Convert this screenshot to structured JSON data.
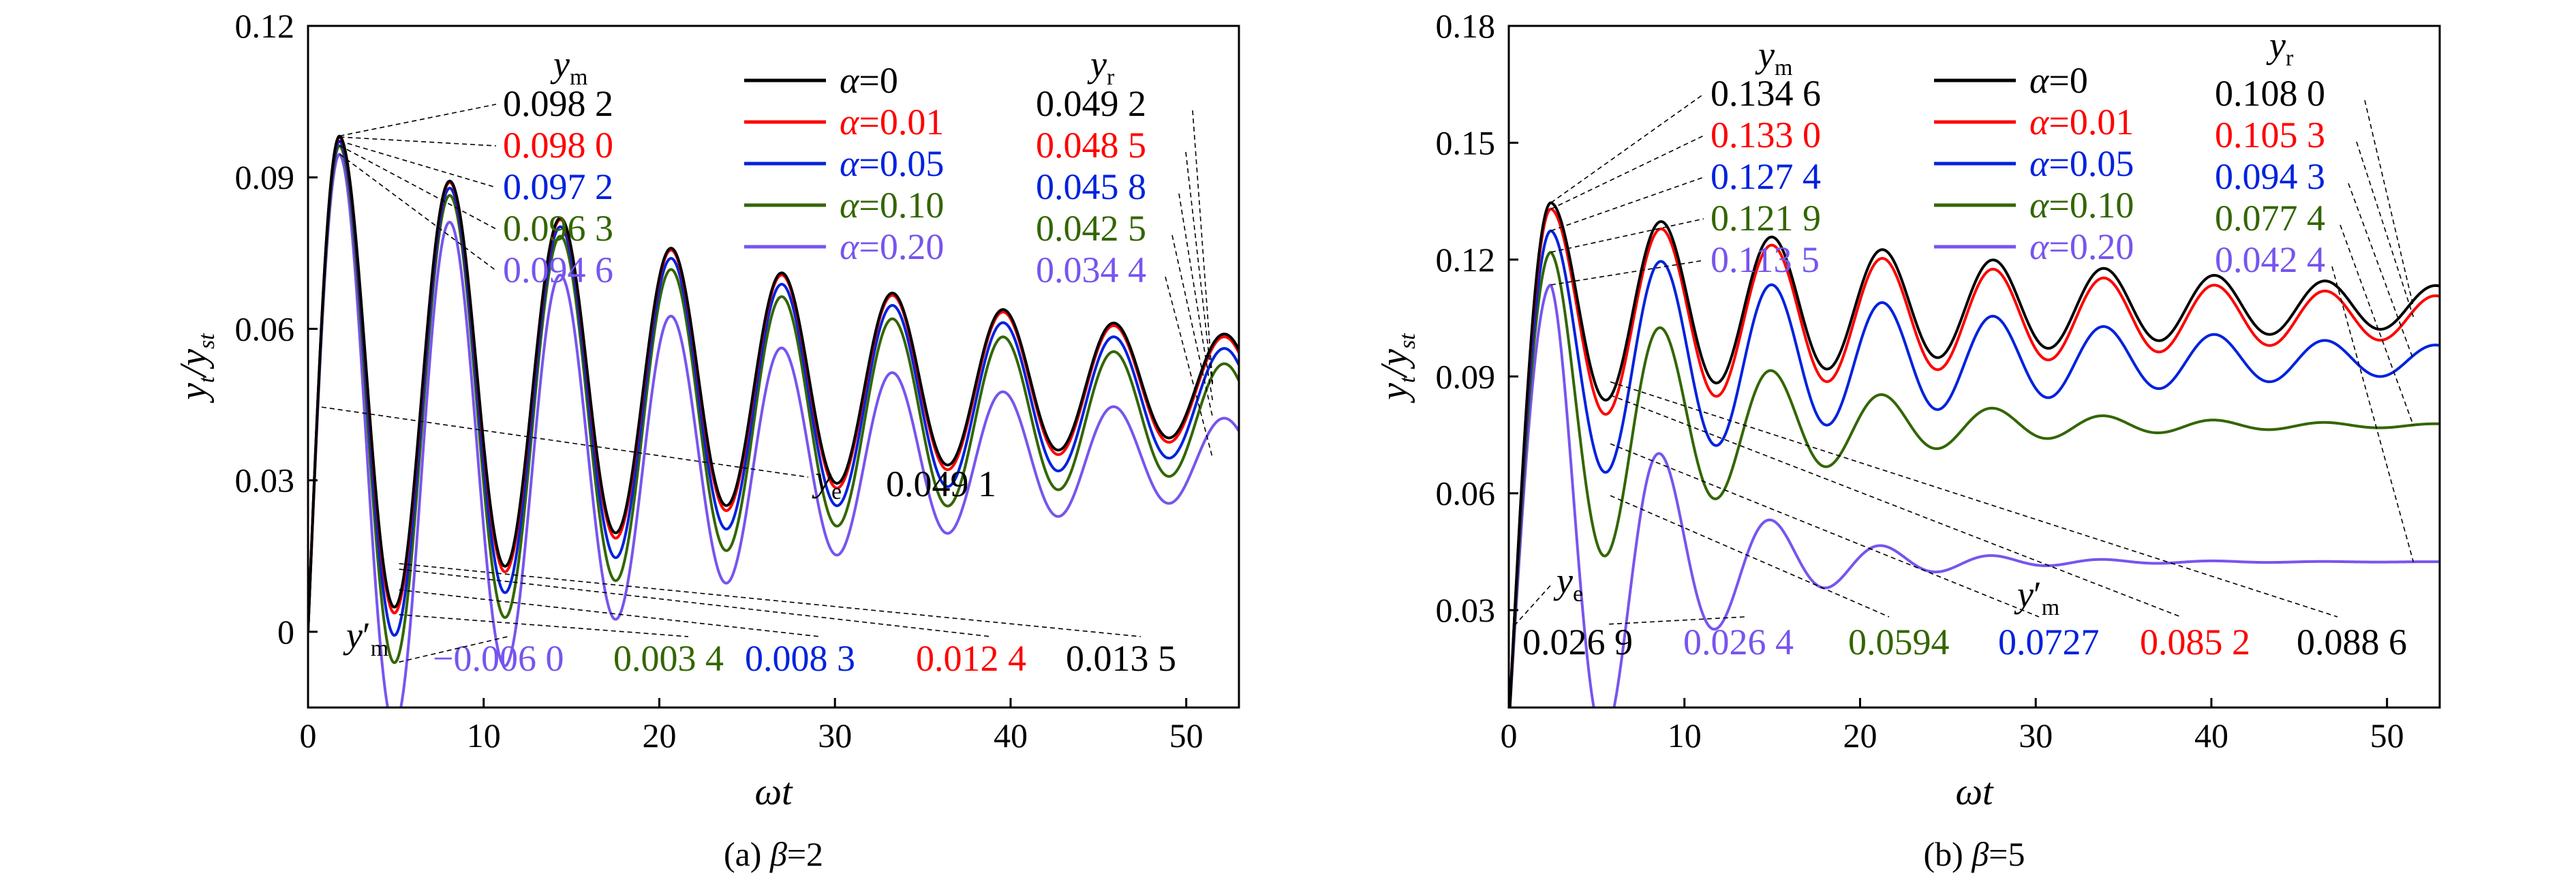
{
  "colors": [
    "#000000",
    "#ff0000",
    "#0022dd",
    "#336600",
    "#7755ee"
  ],
  "legend": [
    "α=0",
    "α=0.01",
    "α=0.05",
    "α=0.10",
    "α=0.20"
  ],
  "chart_data": [
    {
      "type": "line",
      "caption": "(a) β=2",
      "xlabel": "ωt",
      "ylabel": "yt/yst",
      "xlim": [
        0,
        53
      ],
      "ylim": [
        -0.015,
        0.12
      ],
      "xticks": [
        0,
        10,
        20,
        30,
        40,
        50
      ],
      "yticks": [
        0,
        0.03,
        0.06,
        0.09,
        0.12
      ],
      "ytick_labels": [
        "0",
        "0.03",
        "0.06",
        "0.09",
        "0.12"
      ],
      "grid": false,
      "legend_position": "top",
      "period": 6.3,
      "first_peak_t": 1.8,
      "series": [
        {
          "name": "α=0",
          "ym": 0.0982,
          "ymin": 0.0135,
          "yr": 0.0492,
          "decay": 0.12
        },
        {
          "name": "α=0.01",
          "ym": 0.098,
          "ymin": 0.0124,
          "yr": 0.0485,
          "decay": 0.12
        },
        {
          "name": "α=0.05",
          "ym": 0.0972,
          "ymin": 0.0083,
          "yr": 0.0458,
          "decay": 0.12
        },
        {
          "name": "α=0.10",
          "ym": 0.0963,
          "ymin": 0.0034,
          "yr": 0.0425,
          "decay": 0.12
        },
        {
          "name": "α=0.20",
          "ym": 0.0946,
          "ymin": -0.006,
          "yr": 0.0344,
          "decay": 0.1
        }
      ],
      "annotations": {
        "ym_label": "y",
        "ym_sub": "m",
        "ym_values": [
          "0.098 2",
          "0.098 0",
          "0.097 2",
          "0.096 3",
          "0.094 6"
        ],
        "yr_label": "y",
        "yr_sub": "r",
        "yr_values": [
          "0.049 2",
          "0.048 5",
          "0.045 8",
          "0.042 5",
          "0.034 4"
        ],
        "ymin_label": "y′",
        "ymin_sub": "m",
        "ymin_values": [
          "−0.006 0",
          "0.003 4",
          "0.008 3",
          "0.012 4",
          "0.013 5"
        ],
        "ye_label": "y",
        "ye_sub": "e",
        "ye_value": "0.049 1"
      }
    },
    {
      "type": "line",
      "caption": "(b) β=5",
      "xlabel": "ωt",
      "ylabel": "yt/yst",
      "xlim": [
        0,
        53
      ],
      "ylim": [
        0.005,
        0.18
      ],
      "xticks": [
        0,
        10,
        20,
        30,
        40,
        50
      ],
      "yticks": [
        0.03,
        0.06,
        0.09,
        0.12,
        0.15,
        0.18
      ],
      "ytick_labels": [
        "0.03",
        "0.06",
        "0.09",
        "0.12",
        "0.15",
        "0.18"
      ],
      "grid": false,
      "legend_position": "top",
      "period": 6.3,
      "first_peak_t": 2.4,
      "series": [
        {
          "name": "α=0",
          "ym": 0.1346,
          "ymin": 0.0886,
          "yr": 0.108,
          "decay": 0.15
        },
        {
          "name": "α=0.01",
          "ym": 0.133,
          "ymin": 0.0852,
          "yr": 0.1053,
          "decay": 0.15
        },
        {
          "name": "α=0.05",
          "ym": 0.1274,
          "ymin": 0.0727,
          "yr": 0.0943,
          "decay": 0.13
        },
        {
          "name": "α=0.10",
          "ym": 0.1219,
          "ymin": 0.0594,
          "yr": 0.0774,
          "decay": 0.12
        },
        {
          "name": "α=0.20",
          "ym": 0.1135,
          "ymin": 0.0264,
          "yr": 0.0424,
          "decay": 0.11
        }
      ],
      "annotations": {
        "ym_label": "y",
        "ym_sub": "m",
        "ym_values": [
          "0.134 6",
          "0.133 0",
          "0.127 4",
          "0.121 9",
          "0.113 5"
        ],
        "yr_label": "y",
        "yr_sub": "r",
        "yr_values": [
          "0.108 0",
          "0.105 3",
          "0.094 3",
          "0.077 4",
          "0.042 4"
        ],
        "ymin_label": "y′",
        "ymin_sub": "m",
        "ymin_values": [
          "0.0594",
          "0.0727",
          "0.085 2",
          "0.088 6"
        ],
        "ye_label": "y",
        "ye_sub": "e",
        "ye_value": "0.026 9",
        "ye_extra_value": "0.026 4"
      }
    }
  ]
}
